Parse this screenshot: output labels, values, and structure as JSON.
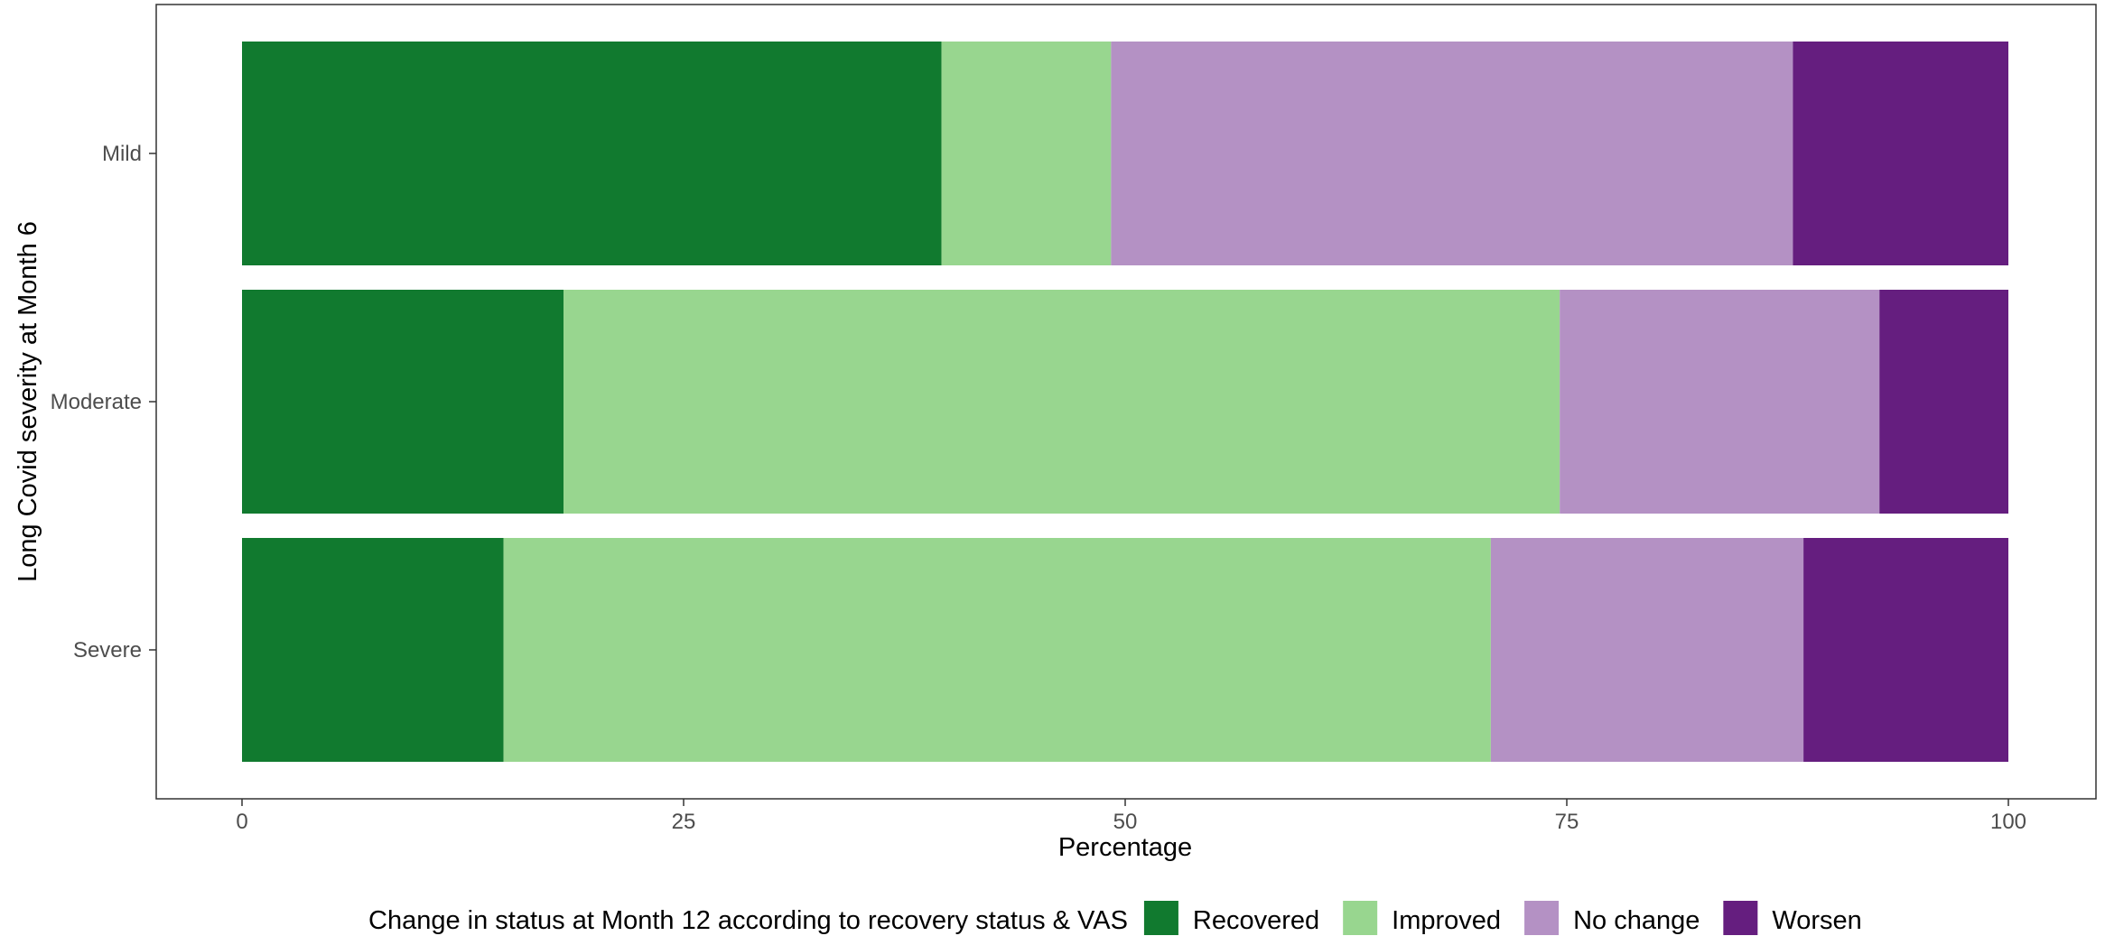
{
  "chart_data": {
    "type": "bar",
    "orientation": "horizontal",
    "stacked": true,
    "title": "",
    "xlabel": "Percentage",
    "ylabel": "Long Covid severity at Month 6",
    "xlim": [
      0,
      100
    ],
    "x_ticks": [
      "0",
      "25",
      "50",
      "75",
      "100"
    ],
    "categories": [
      "Mild",
      "Moderate",
      "Severe"
    ],
    "series": [
      {
        "name": "Recovered",
        "color": "#117A2F",
        "values": [
          39.6,
          18.2,
          14.8
        ]
      },
      {
        "name": "Improved",
        "color": "#98D68F",
        "values": [
          9.6,
          56.4,
          55.9
        ]
      },
      {
        "name": "No change",
        "color": "#B491C4",
        "values": [
          38.6,
          18.1,
          17.7
        ]
      },
      {
        "name": "Worsen",
        "color": "#651E7F",
        "values": [
          12.2,
          7.3,
          11.6
        ]
      }
    ],
    "grid": false,
    "legend_position": "bottom",
    "legend_title": "Change in status at Month 12 according to recovery status & VAS"
  }
}
